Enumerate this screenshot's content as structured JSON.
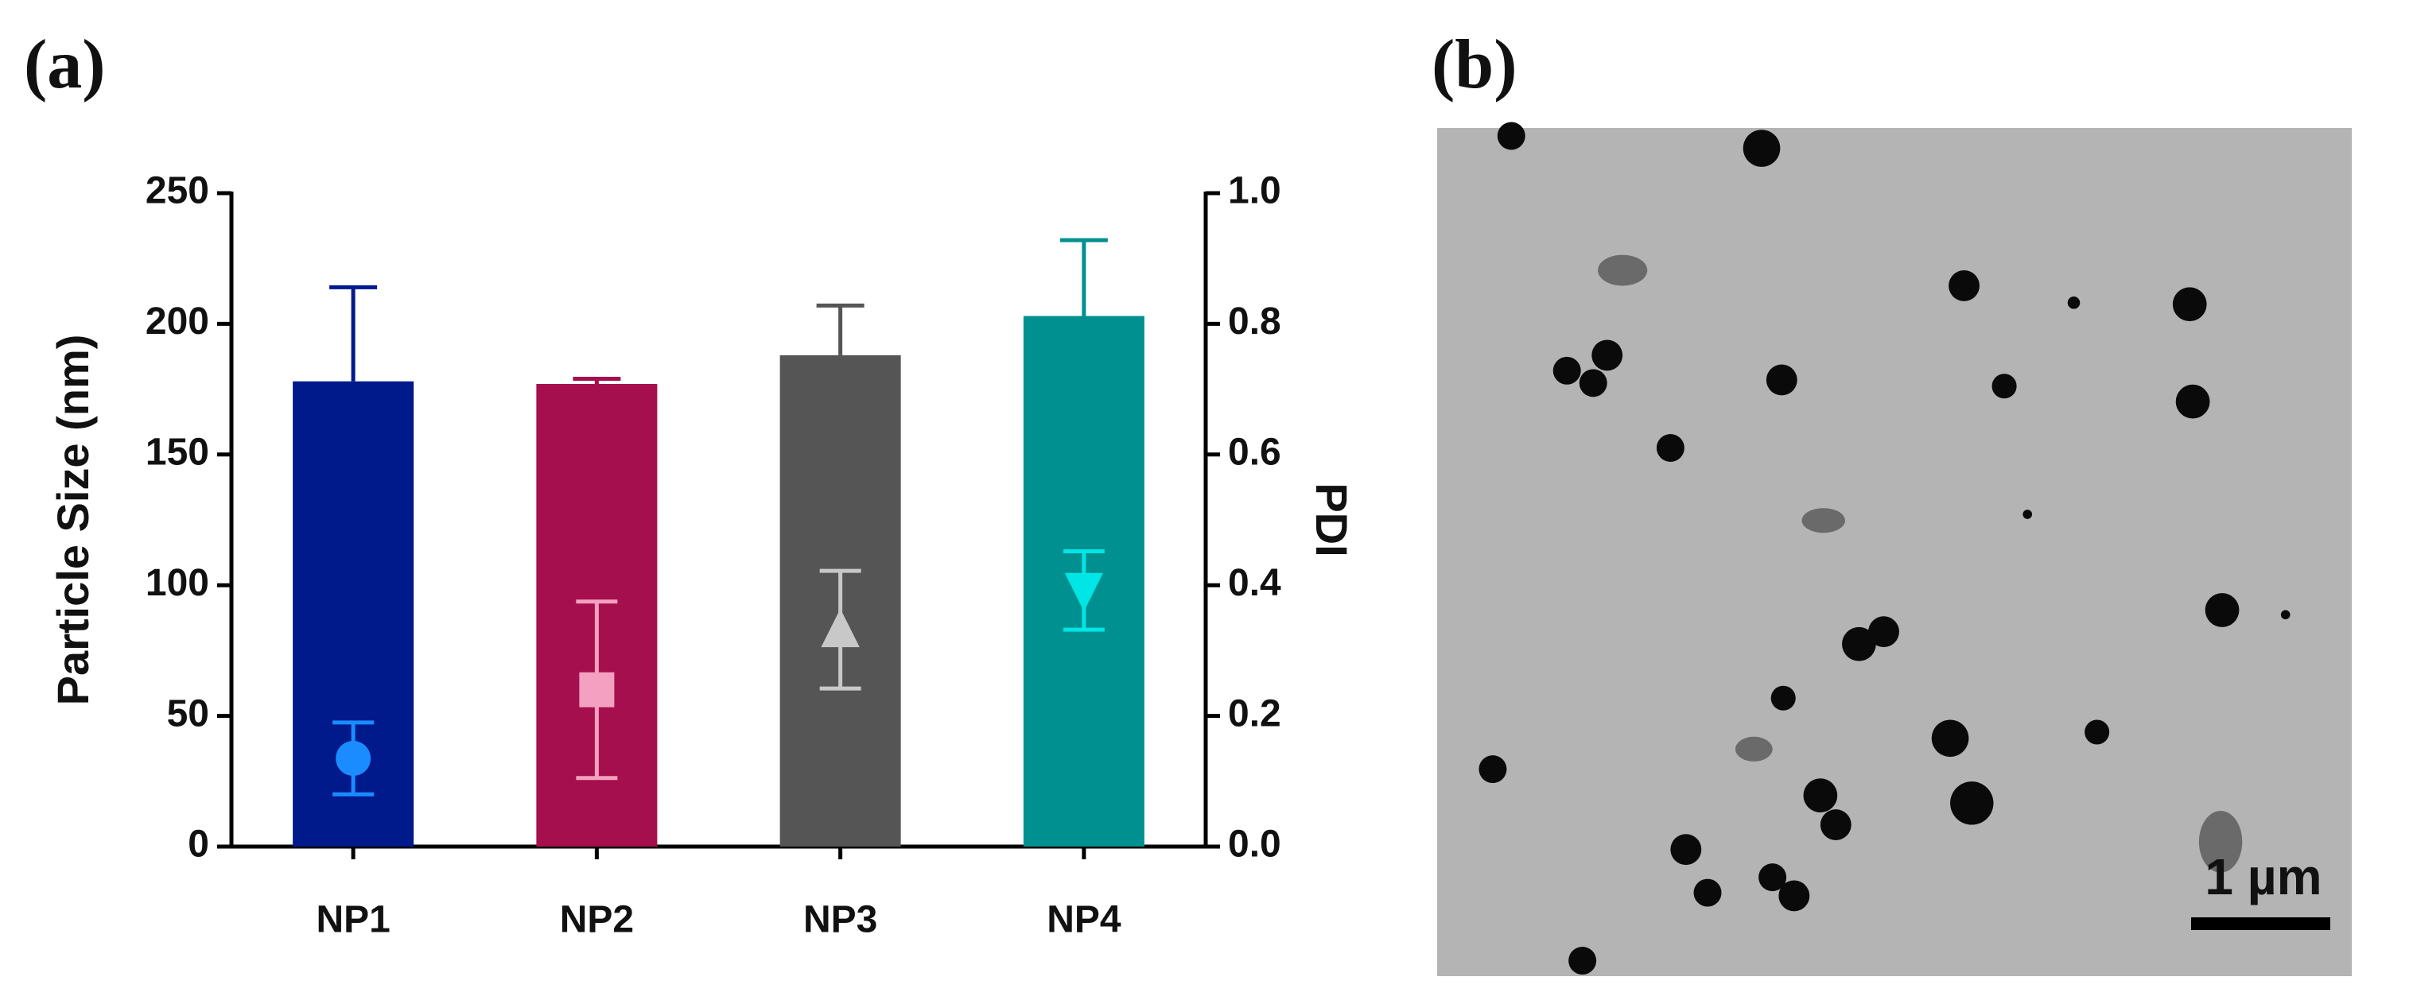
{
  "chart_data": {
    "type": "bar",
    "categories": [
      "NP1",
      "NP2",
      "NP3",
      "NP4"
    ],
    "ylabel": "Particle Size (nm)",
    "y2label": "PDI",
    "ylim": [
      0,
      250
    ],
    "yticks": [
      0,
      50,
      100,
      150,
      200,
      250
    ],
    "y2lim": [
      0,
      1
    ],
    "y2ticks": [
      {
        "value": 0,
        "label": "0.0"
      },
      0.2,
      0.4,
      0.6,
      0.8,
      {
        "value": 1,
        "label": "1.0"
      }
    ],
    "series": [
      {
        "type": "bar",
        "colors": [
          "#001a8c",
          "#a50f4d",
          "#555555",
          "#009090"
        ],
        "values": [
          178,
          177,
          188,
          203
        ],
        "errors": [
          36,
          2,
          19,
          29
        ]
      },
      {
        "type": "scatter",
        "axis": "y2",
        "colors": [
          "#1a8cff",
          "#f4a0c0",
          "#c8c8c8",
          "#00e5e5"
        ],
        "markers": [
          "circle",
          "square",
          "triangle-up",
          "triangle-down"
        ],
        "values": [
          0.135,
          0.24,
          0.332,
          0.392
        ],
        "errors": [
          0.055,
          0.135,
          0.09,
          0.06
        ]
      }
    ]
  },
  "panel_labels": [
    "(a)",
    "(b)"
  ],
  "scale_bar": "1 µm"
}
